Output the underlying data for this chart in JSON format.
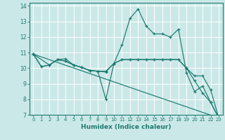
{
  "xlabel": "Humidex (Indice chaleur)",
  "background_color": "#cbe8e8",
  "grid_color": "#ffffff",
  "line_color": "#1a7a6e",
  "xlim": [
    -0.5,
    23.5
  ],
  "ylim": [
    7,
    14.2
  ],
  "xticks": [
    0,
    1,
    2,
    3,
    4,
    5,
    6,
    7,
    8,
    9,
    10,
    11,
    12,
    13,
    14,
    15,
    16,
    17,
    18,
    19,
    20,
    21,
    22,
    23
  ],
  "yticks": [
    7,
    8,
    9,
    10,
    11,
    12,
    13,
    14
  ],
  "lines": [
    {
      "x": [
        0,
        1,
        2,
        3,
        4,
        5,
        6,
        7,
        8,
        9,
        10,
        11,
        12,
        13,
        14,
        15,
        16,
        17,
        18,
        19,
        20,
        21,
        22,
        23
      ],
      "y": [
        10.9,
        10.1,
        10.2,
        10.55,
        10.6,
        10.2,
        10.05,
        9.85,
        9.8,
        9.8,
        10.3,
        11.5,
        13.2,
        13.8,
        12.7,
        12.2,
        12.2,
        12.0,
        12.5,
        9.7,
        8.5,
        8.85,
        7.8,
        6.8
      ]
    },
    {
      "x": [
        0,
        1,
        2,
        3,
        4,
        5,
        6,
        7,
        8,
        9,
        10,
        11,
        12,
        13,
        14,
        15,
        16,
        17,
        18,
        19,
        20,
        21,
        22,
        23
      ],
      "y": [
        10.9,
        10.1,
        10.2,
        10.55,
        10.45,
        10.2,
        10.05,
        9.85,
        9.8,
        9.75,
        10.3,
        10.55,
        10.55,
        10.55,
        10.55,
        10.55,
        10.55,
        10.55,
        10.55,
        10.0,
        9.5,
        9.5,
        8.6,
        6.8
      ]
    },
    {
      "x": [
        0,
        2,
        3,
        4,
        5,
        6,
        7,
        8,
        9,
        10,
        11,
        12,
        13,
        14,
        15,
        16,
        17,
        18,
        19,
        20,
        21,
        22,
        23
      ],
      "y": [
        10.9,
        10.2,
        10.55,
        10.45,
        10.2,
        10.05,
        9.85,
        9.8,
        8.0,
        10.3,
        10.55,
        10.55,
        10.55,
        10.55,
        10.55,
        10.55,
        10.55,
        10.55,
        10.0,
        9.2,
        8.4,
        7.8,
        6.8
      ]
    },
    {
      "x": [
        0,
        23
      ],
      "y": [
        10.9,
        6.8
      ]
    }
  ]
}
